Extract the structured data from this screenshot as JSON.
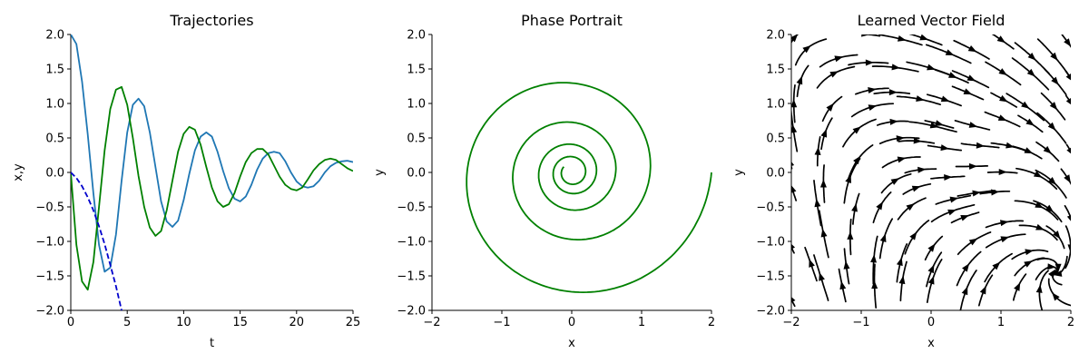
{
  "chart_data": [
    {
      "type": "line",
      "title": "Trajectories",
      "xlabel": "t",
      "ylabel": "x,y",
      "xlim": [
        0,
        25
      ],
      "ylim": [
        -2,
        2
      ],
      "xticks": [
        0,
        5,
        10,
        15,
        20,
        25
      ],
      "xtick_labels": [
        "0",
        "5",
        "10",
        "15",
        "20",
        "25"
      ],
      "yticks": [
        -2,
        -1.5,
        -1,
        -0.5,
        0,
        0.5,
        1,
        1.5,
        2
      ],
      "ytick_labels": [
        "−2.0",
        "−1.5",
        "−1.0",
        "−0.5",
        "0.0",
        "0.5",
        "1.0",
        "1.5",
        "2.0"
      ],
      "grid": false,
      "series": [
        {
          "color": "#1f77b4",
          "style": "solid",
          "points": [
            [
              0,
              2.0
            ],
            [
              0.5,
              1.86
            ],
            [
              1.0,
              1.32
            ],
            [
              1.5,
              0.55
            ],
            [
              2.0,
              -0.3
            ],
            [
              2.5,
              -1.05
            ],
            [
              3.0,
              -1.44
            ],
            [
              3.5,
              -1.38
            ],
            [
              4.0,
              -0.9
            ],
            [
              4.5,
              -0.12
            ],
            [
              5.0,
              0.58
            ],
            [
              5.5,
              0.98
            ],
            [
              6.0,
              1.07
            ],
            [
              6.5,
              0.96
            ],
            [
              7.0,
              0.58
            ],
            [
              7.5,
              0.08
            ],
            [
              8.0,
              -0.42
            ],
            [
              8.5,
              -0.71
            ],
            [
              9.0,
              -0.79
            ],
            [
              9.5,
              -0.7
            ],
            [
              10.0,
              -0.4
            ],
            [
              10.5,
              -0.02
            ],
            [
              11.0,
              0.32
            ],
            [
              11.5,
              0.52
            ],
            [
              12.0,
              0.58
            ],
            [
              12.5,
              0.52
            ],
            [
              13.0,
              0.3
            ],
            [
              13.5,
              0.02
            ],
            [
              14.0,
              -0.23
            ],
            [
              14.5,
              -0.38
            ],
            [
              15.0,
              -0.42
            ],
            [
              15.5,
              -0.35
            ],
            [
              16.0,
              -0.18
            ],
            [
              16.5,
              0.04
            ],
            [
              17.0,
              0.2
            ],
            [
              17.5,
              0.28
            ],
            [
              18.0,
              0.3
            ],
            [
              18.5,
              0.28
            ],
            [
              19.0,
              0.16
            ],
            [
              19.5,
              0.0
            ],
            [
              20.0,
              -0.13
            ],
            [
              20.5,
              -0.2
            ],
            [
              21.0,
              -0.22
            ],
            [
              21.5,
              -0.2
            ],
            [
              22.0,
              -0.12
            ],
            [
              22.5,
              0.0
            ],
            [
              23.0,
              0.09
            ],
            [
              23.5,
              0.14
            ],
            [
              24.0,
              0.16
            ],
            [
              24.5,
              0.17
            ],
            [
              25.0,
              0.15
            ]
          ]
        },
        {
          "color": "#008000",
          "style": "solid",
          "points": [
            [
              0,
              0.0
            ],
            [
              0.5,
              -1.05
            ],
            [
              1.0,
              -1.58
            ],
            [
              1.5,
              -1.7
            ],
            [
              2.0,
              -1.3
            ],
            [
              2.5,
              -0.5
            ],
            [
              3.0,
              0.32
            ],
            [
              3.5,
              0.92
            ],
            [
              4.0,
              1.2
            ],
            [
              4.5,
              1.24
            ],
            [
              5.0,
              0.98
            ],
            [
              5.5,
              0.5
            ],
            [
              6.0,
              -0.05
            ],
            [
              6.5,
              -0.5
            ],
            [
              7.0,
              -0.8
            ],
            [
              7.5,
              -0.92
            ],
            [
              8.0,
              -0.85
            ],
            [
              8.5,
              -0.55
            ],
            [
              9.0,
              -0.12
            ],
            [
              9.5,
              0.3
            ],
            [
              10.0,
              0.56
            ],
            [
              10.5,
              0.66
            ],
            [
              11.0,
              0.62
            ],
            [
              11.5,
              0.4
            ],
            [
              12.0,
              0.08
            ],
            [
              12.5,
              -0.22
            ],
            [
              13.0,
              -0.42
            ],
            [
              13.5,
              -0.5
            ],
            [
              14.0,
              -0.46
            ],
            [
              14.5,
              -0.3
            ],
            [
              15.0,
              -0.06
            ],
            [
              15.5,
              0.15
            ],
            [
              16.0,
              0.28
            ],
            [
              16.5,
              0.34
            ],
            [
              17.0,
              0.34
            ],
            [
              17.5,
              0.26
            ],
            [
              18.0,
              0.1
            ],
            [
              18.5,
              -0.06
            ],
            [
              19.0,
              -0.18
            ],
            [
              19.5,
              -0.24
            ],
            [
              20.0,
              -0.26
            ],
            [
              20.5,
              -0.22
            ],
            [
              21.0,
              -0.1
            ],
            [
              21.5,
              0.03
            ],
            [
              22.0,
              0.12
            ],
            [
              22.5,
              0.18
            ],
            [
              23.0,
              0.2
            ],
            [
              23.5,
              0.18
            ],
            [
              24.0,
              0.12
            ],
            [
              24.5,
              0.06
            ],
            [
              25.0,
              0.02
            ]
          ]
        },
        {
          "color": "#0000cc",
          "style": "dashed",
          "points": [
            [
              0,
              0.0
            ],
            [
              0.5,
              -0.08
            ],
            [
              1.0,
              -0.2
            ],
            [
              1.5,
              -0.36
            ],
            [
              2.0,
              -0.55
            ],
            [
              2.5,
              -0.78
            ],
            [
              3.0,
              -1.04
            ],
            [
              3.5,
              -1.34
            ],
            [
              4.0,
              -1.65
            ],
            [
              4.5,
              -2.0
            ],
            [
              4.6,
              -2.08
            ]
          ]
        }
      ]
    },
    {
      "type": "line",
      "title": "Phase Portrait",
      "xlabel": "x",
      "ylabel": "y",
      "xlim": [
        -2,
        2
      ],
      "ylim": [
        -2,
        2
      ],
      "xticks": [
        -2,
        -1,
        0,
        1,
        2
      ],
      "xtick_labels": [
        "−2",
        "−1",
        "0",
        "1",
        "2"
      ],
      "yticks": [
        -2,
        -1.5,
        -1,
        -0.5,
        0,
        0.5,
        1,
        1.5,
        2
      ],
      "ytick_labels": [
        "−2.0",
        "−1.5",
        "−1.0",
        "−0.5",
        "0.0",
        "0.5",
        "1.0",
        "1.5",
        "2.0"
      ],
      "grid": false,
      "series": [
        {
          "color": "#008000",
          "spiral": {
            "start_radius": 2.0,
            "end_radius": 0.14,
            "turns": 4.6,
            "center": [
              0.0,
              0.0
            ],
            "direction": "clockwise"
          }
        }
      ]
    },
    {
      "type": "streamplot",
      "title": "Learned Vector Field",
      "xlabel": "x",
      "ylabel": "y",
      "xlim": [
        -2,
        2
      ],
      "ylim": [
        -2,
        2
      ],
      "xticks": [
        -2,
        -1,
        0,
        1,
        2
      ],
      "xtick_labels": [
        "−2",
        "−1",
        "0",
        "1",
        "2"
      ],
      "yticks": [
        -2,
        -1.5,
        -1,
        -0.5,
        0,
        0.5,
        1,
        1.5,
        2
      ],
      "ytick_labels": [
        "−2.0",
        "−1.5",
        "−1.0",
        "−0.5",
        "0.0",
        "0.5",
        "1.0",
        "1.5",
        "2.0"
      ],
      "grid": false,
      "line_color": "#000000",
      "focus": [
        0.45,
        0.3
      ]
    }
  ]
}
